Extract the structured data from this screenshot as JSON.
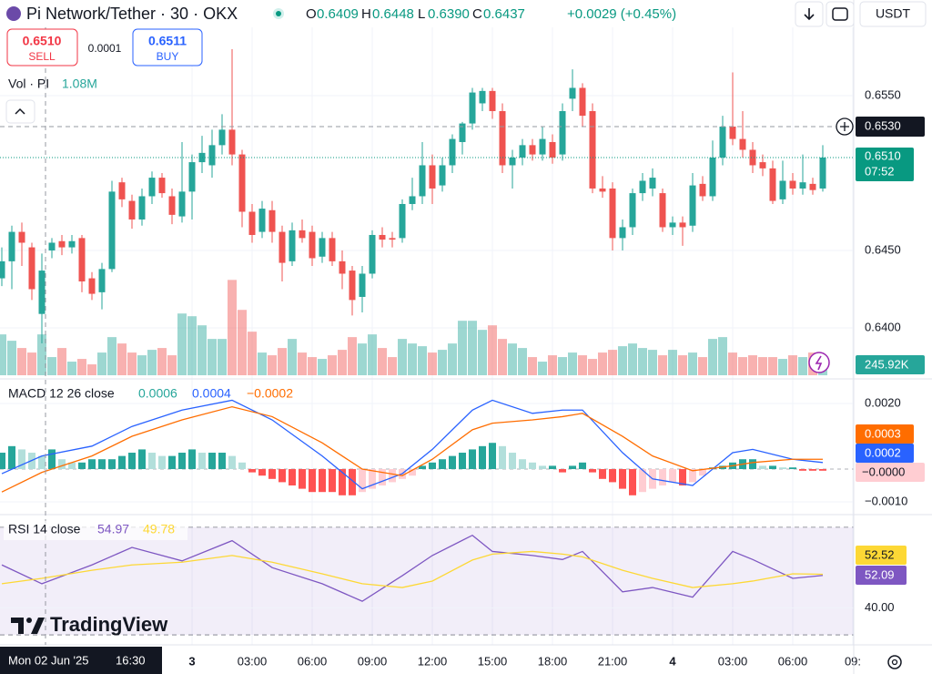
{
  "header": {
    "symbol": "Pi Network/Tether · 30 · OKX",
    "ohlc": [
      {
        "label": "O",
        "value": "0.6409"
      },
      {
        "label": "H",
        "value": "0.6448"
      },
      {
        "label": "L",
        "value": "0.6390"
      },
      {
        "label": "C",
        "value": "0.6437"
      }
    ],
    "change": "+0.0029 (+0.45%)",
    "currency": "USDT"
  },
  "trade": {
    "sell_price": "0.6510",
    "sell": "SELL",
    "spread": "0.0001",
    "buy_price": "0.6511",
    "buy": "BUY"
  },
  "volume_legend": {
    "label": "Vol · PI",
    "value": "1.08M"
  },
  "macd_legend": {
    "label": "MACD 12 26 close",
    "values": [
      "0.0006",
      "0.0004",
      "−0.0002"
    ]
  },
  "rsi_legend": {
    "label": "RSI 14 close",
    "values": [
      "54.97",
      "49.78"
    ]
  },
  "price_labels": {
    "crosshair": "0.6530",
    "last": "0.6510",
    "countdown": "07:52",
    "volume": "245.92K",
    "macd_signal": "0.0003",
    "macd": "0.0002",
    "histogram": "−0.0000",
    "rsi_ma": "52.52",
    "rsi": "52.09"
  },
  "crosshair_time": "Mon 02 Jun '25",
  "crosshair_clock": "16:30",
  "brand": "TradingView",
  "chart_data": [
    {
      "type": "candlestick",
      "open": [
        0.6432,
        0.6443,
        0.6462,
        0.6452,
        0.6409,
        0.645,
        0.6456,
        0.6452,
        0.6458,
        0.6432,
        0.6423,
        0.6438,
        0.6494,
        0.6482,
        0.647,
        0.6485,
        0.6497,
        0.6485,
        0.6472,
        0.6488,
        0.6507,
        0.6505,
        0.6518,
        0.6528,
        0.6512,
        0.6475,
        0.6462,
        0.6476,
        0.6462,
        0.6443,
        0.6463,
        0.6462,
        0.6446,
        0.6458,
        0.6443,
        0.6437,
        0.642,
        0.6435,
        0.646,
        0.6458,
        0.6458,
        0.648,
        0.6485,
        0.6505,
        0.6492,
        0.6505,
        0.652,
        0.6532,
        0.6545,
        0.6553,
        0.654,
        0.6505,
        0.651,
        0.6518,
        0.6512,
        0.652,
        0.6512,
        0.6548,
        0.6555,
        0.654,
        0.649,
        0.649,
        0.6458,
        0.6465,
        0.6487,
        0.649,
        0.6487,
        0.6465,
        0.6468,
        0.6466,
        0.6493,
        0.6485,
        0.651,
        0.653,
        0.6522,
        0.6515,
        0.6507,
        0.6503,
        0.6483,
        0.6495,
        0.649,
        0.6493,
        0.649
      ],
      "high": [
        0.6452,
        0.6466,
        0.6468,
        0.6455,
        0.6448,
        0.6458,
        0.646,
        0.646,
        0.646,
        0.6436,
        0.6442,
        0.6495,
        0.6497,
        0.6486,
        0.649,
        0.6501,
        0.65,
        0.649,
        0.652,
        0.6512,
        0.6524,
        0.6528,
        0.6538,
        0.658,
        0.6515,
        0.648,
        0.6482,
        0.6482,
        0.6466,
        0.6468,
        0.647,
        0.6466,
        0.6462,
        0.6462,
        0.645,
        0.644,
        0.644,
        0.6463,
        0.6465,
        0.6462,
        0.6483,
        0.6497,
        0.652,
        0.6512,
        0.651,
        0.6525,
        0.6533,
        0.6555,
        0.6555,
        0.6555,
        0.6545,
        0.6515,
        0.6522,
        0.6522,
        0.653,
        0.6525,
        0.6545,
        0.6567,
        0.6558,
        0.6545,
        0.6498,
        0.6494,
        0.647,
        0.649,
        0.65,
        0.6503,
        0.649,
        0.6472,
        0.6472,
        0.65,
        0.6498,
        0.6521,
        0.6537,
        0.6565,
        0.654,
        0.652,
        0.6512,
        0.6508,
        0.6508,
        0.65,
        0.6512,
        0.6497,
        0.6518
      ],
      "low": [
        0.6427,
        0.6425,
        0.644,
        0.6418,
        0.639,
        0.6445,
        0.6447,
        0.6448,
        0.6423,
        0.6418,
        0.6412,
        0.6436,
        0.6478,
        0.6464,
        0.6466,
        0.648,
        0.6484,
        0.6467,
        0.6468,
        0.647,
        0.65,
        0.6497,
        0.6512,
        0.6505,
        0.6465,
        0.6455,
        0.6458,
        0.6455,
        0.643,
        0.644,
        0.6455,
        0.644,
        0.6442,
        0.644,
        0.6425,
        0.6408,
        0.641,
        0.6432,
        0.6452,
        0.6452,
        0.6455,
        0.6476,
        0.648,
        0.648,
        0.6488,
        0.65,
        0.6512,
        0.6528,
        0.654,
        0.6535,
        0.65,
        0.649,
        0.6505,
        0.6508,
        0.6508,
        0.6506,
        0.6508,
        0.654,
        0.653,
        0.6487,
        0.6484,
        0.645,
        0.645,
        0.646,
        0.6482,
        0.6485,
        0.6462,
        0.646,
        0.6453,
        0.6462,
        0.6482,
        0.6482,
        0.6505,
        0.6518,
        0.651,
        0.65,
        0.6498,
        0.648,
        0.648,
        0.6486,
        0.6486,
        0.6486,
        0.6488
      ],
      "close": [
        0.6443,
        0.6462,
        0.6455,
        0.6425,
        0.6437,
        0.6455,
        0.6452,
        0.6456,
        0.643,
        0.6422,
        0.6438,
        0.6488,
        0.6483,
        0.647,
        0.6485,
        0.6497,
        0.6487,
        0.6473,
        0.6488,
        0.6507,
        0.6513,
        0.6518,
        0.6528,
        0.6512,
        0.6475,
        0.646,
        0.6477,
        0.6462,
        0.6442,
        0.6463,
        0.6458,
        0.6445,
        0.6458,
        0.6443,
        0.6435,
        0.6418,
        0.6435,
        0.646,
        0.6457,
        0.6457,
        0.648,
        0.6485,
        0.6505,
        0.649,
        0.6505,
        0.6522,
        0.6532,
        0.6552,
        0.6553,
        0.654,
        0.6505,
        0.651,
        0.6518,
        0.6512,
        0.6522,
        0.651,
        0.654,
        0.6555,
        0.6537,
        0.649,
        0.6488,
        0.6458,
        0.6465,
        0.6487,
        0.6495,
        0.6497,
        0.6465,
        0.6468,
        0.6465,
        0.6492,
        0.6485,
        0.651,
        0.653,
        0.6522,
        0.6515,
        0.6505,
        0.6503,
        0.6482,
        0.6495,
        0.649,
        0.6494,
        0.6489,
        0.651
      ],
      "up_color": "#26a69a",
      "down_color": "#ef5350",
      "ylim": [
        0.63694,
        0.65941
      ],
      "yticks": [
        {
          "value": 0.655,
          "label": "0.6550"
        },
        {
          "value": 0.645,
          "label": "0.6450"
        },
        {
          "value": 0.64,
          "label": "0.6400"
        }
      ],
      "xticks": [
        {
          "value": 19,
          "label": "3"
        },
        {
          "value": 25,
          "label": "03:00"
        },
        {
          "value": 31,
          "label": "06:00"
        },
        {
          "value": 37,
          "label": "09:00"
        },
        {
          "value": 43,
          "label": "12:00"
        },
        {
          "value": 49,
          "label": "15:00"
        },
        {
          "value": 55,
          "label": "18:00"
        },
        {
          "value": 61,
          "label": "21:00"
        },
        {
          "value": 67,
          "label": "4"
        },
        {
          "value": 73,
          "label": "03:00"
        },
        {
          "value": 79,
          "label": "06:00"
        },
        {
          "value": 85,
          "label": "09:"
        }
      ],
      "grid": true
    },
    {
      "type": "bar",
      "values": [
        1080000,
        912000,
        720000,
        600000,
        1080000,
        480000,
        720000,
        360000,
        432000,
        288000,
        600000,
        1008000,
        840000,
        600000,
        528000,
        672000,
        720000,
        528000,
        1632000,
        1560000,
        1320000,
        960000,
        960000,
        2520000,
        1728000,
        1152000,
        600000,
        528000,
        720000,
        960000,
        600000,
        480000,
        432000,
        528000,
        672000,
        1008000,
        840000,
        1080000,
        720000,
        480000,
        960000,
        840000,
        768000,
        600000,
        672000,
        840000,
        1440000,
        1440000,
        1200000,
        1320000,
        960000,
        840000,
        720000,
        480000,
        360000,
        528000,
        480000,
        600000,
        528000,
        432000,
        600000,
        672000,
        768000,
        840000,
        720000,
        672000,
        528000,
        672000,
        528000,
        600000,
        480000,
        960000,
        1008000,
        600000,
        480000,
        528000,
        480000,
        480000,
        432000,
        528000,
        480000,
        600000,
        245920
      ],
      "ylim": [
        0,
        2600000
      ]
    },
    {
      "type": "macd",
      "x": [
        0,
        4,
        9,
        13,
        18,
        23,
        27,
        32,
        36,
        40,
        43,
        47,
        49,
        53,
        56,
        58,
        62,
        65,
        69,
        73,
        75,
        79,
        82
      ],
      "series": [
        {
          "color": "#2962ff",
          "values": [
            -0.00014,
            0.0004,
            0.0007,
            0.0013,
            0.0018,
            0.0021,
            0.0015,
            0.0004,
            -0.0006,
            -0.00014,
            0.0006,
            0.0018,
            0.0021,
            0.0017,
            0.0018,
            0.0018,
            0.0005,
            -0.0003,
            -0.0005,
            0.0005,
            0.0006,
            0.0003,
            0.0002
          ]
        },
        {
          "color": "#ff6d00",
          "values": [
            -0.0007,
            -0.0001,
            0.0004,
            0.001,
            0.0015,
            0.0019,
            0.0016,
            0.0008,
            0,
            -0.0002,
            0.0003,
            0.0012,
            0.0014,
            0.0015,
            0.0016,
            0.0017,
            0.001,
            0.0004,
            -5e-05,
            0.0001,
            0.0002,
            0.0003,
            0.0003
          ]
        }
      ],
      "histogram": [
        0.0005,
        0.0007,
        0.0006,
        0.0005,
        0.0004,
        0.0006,
        0.0003,
        0.0002,
        0.0002,
        0.0003,
        0.0003,
        0.0003,
        0.0004,
        0.0005,
        0.0006,
        0.0005,
        0.0004,
        0.0004,
        0.0005,
        0.0006,
        0.0005,
        0.0005,
        0.0005,
        0.0004,
        0.0002,
        -0.0001,
        -0.0002,
        -0.0003,
        -0.0004,
        -0.0005,
        -0.0006,
        -0.0007,
        -0.0007,
        -0.0007,
        -0.0008,
        -0.0008,
        -0.0007,
        -0.0006,
        -0.0005,
        -0.0004,
        -0.0003,
        -0.0002,
        0.0001,
        0.0002,
        0.0003,
        0.0004,
        0.0005,
        0.0006,
        0.0007,
        0.0008,
        0.0007,
        0.0005,
        0.0003,
        0.0002,
        0.0001,
        0.0001,
        -0.0001,
        0.0001,
        0.0002,
        -0.0001,
        -0.0003,
        -0.0004,
        -0.0006,
        -0.0008,
        -0.0007,
        -0.0006,
        -0.0005,
        -0.0004,
        -0.0005,
        -0.0004,
        -0.0002,
        5e-05,
        0.0001,
        0.0002,
        0.0003,
        0.0003,
        0.0001,
        0.0001,
        5e-05,
        5e-05,
        -5e-05,
        -5e-05,
        -5e-05
      ],
      "histogram_colors": {
        "up_grow": "#26a69a",
        "up_fall": "#b2dfdb",
        "down_grow": "#ff5252",
        "down_fall": "#ffcdd2"
      },
      "ylim": [
        -0.00125,
        0.00264
      ],
      "yticks": [
        {
          "value": 0.002,
          "label": "0.0020"
        },
        {
          "value": -0.001,
          "label": "−0.0010"
        }
      ]
    },
    {
      "type": "line",
      "x": [
        0,
        4,
        9,
        13,
        18,
        23,
        27,
        32,
        36,
        40,
        43,
        47,
        49,
        53,
        56,
        58,
        62,
        65,
        69,
        73,
        75,
        79,
        82
      ],
      "series": [
        {
          "color": "#7e57c2",
          "values": [
            56,
            49,
            56,
            62.5,
            57.5,
            65,
            55,
            49,
            42.5,
            52,
            59.5,
            67,
            61,
            59.5,
            58,
            61,
            46,
            47.6,
            44,
            61,
            58,
            51,
            52.09
          ]
        },
        {
          "color": "#fdd835",
          "values": [
            49,
            51,
            54,
            56,
            57,
            59.5,
            57,
            52.7,
            49,
            47.6,
            50,
            57.8,
            60,
            61,
            60,
            59,
            54,
            51,
            47.6,
            49,
            50,
            52.7,
            52.52
          ]
        }
      ],
      "bands": [
        30,
        70
      ],
      "band_color": "#7e57c2",
      "ylim": [
        29,
        73
      ],
      "yticks": [
        {
          "value": 40,
          "label": "40.00"
        }
      ]
    }
  ]
}
